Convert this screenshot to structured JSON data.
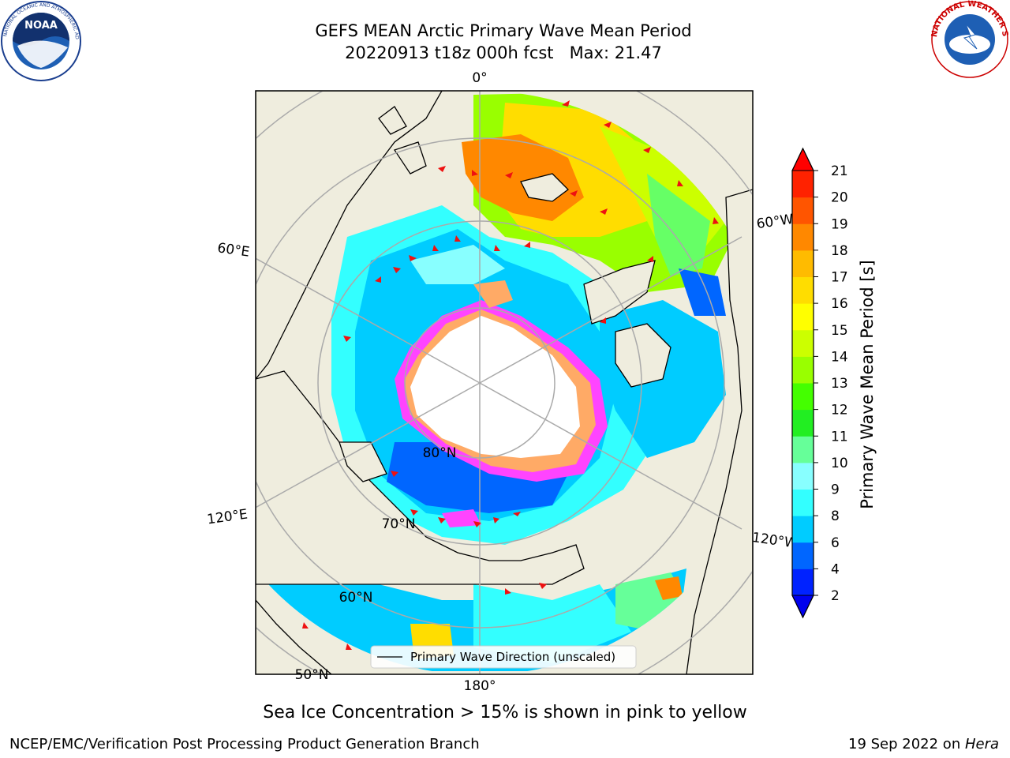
{
  "title": {
    "line1": "GEFS MEAN Arctic Primary Wave Mean Period",
    "line2": "20220913 t18z 000h fcst   Max: 21.47"
  },
  "map": {
    "lon_labels": [
      "0°",
      "60°E",
      "120°E",
      "180°",
      "120°W",
      "60°W"
    ],
    "lat_labels": [
      "80°N",
      "70°N",
      "60°N",
      "50°N"
    ],
    "legend_label": "Primary Wave Direction (unscaled)",
    "land_color": "#efedde",
    "ice_colors": [
      "#ff44ff",
      "#ffaa66",
      "#ffe066"
    ]
  },
  "colorbar": {
    "label": "Primary Wave Mean Period [s]",
    "ticks": [
      "2",
      "4",
      "6",
      "8",
      "9",
      "10",
      "11",
      "12",
      "13",
      "14",
      "15",
      "16",
      "17",
      "18",
      "19",
      "20",
      "21"
    ],
    "colors": [
      "#0022ff",
      "#0066ff",
      "#00ccff",
      "#33ffff",
      "#88ffff",
      "#66ff99",
      "#22ee22",
      "#44ff00",
      "#99ff00",
      "#ccff00",
      "#ffff00",
      "#ffdd00",
      "#ffbb00",
      "#ff8800",
      "#ff5500",
      "#ff2200"
    ],
    "under_color": "#0000ee",
    "over_color": "#ff0000"
  },
  "caption": "Sea Ice Concentration > 15% is shown in pink to yellow",
  "footer": {
    "left": "NCEP/EMC/Verification Post Processing Product Generation Branch",
    "right_date": "19 Sep 2022 on ",
    "right_machine": "Hera"
  },
  "logos": {
    "noaa_text": "NOAA",
    "nws_text": "NATIONAL WEATHER SERVICE"
  }
}
